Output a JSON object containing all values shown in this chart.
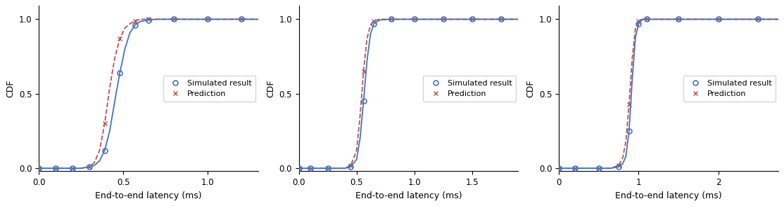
{
  "sim1": {
    "sim_x": [
      0.0,
      0.05,
      0.1,
      0.15,
      0.2,
      0.25,
      0.3,
      0.33,
      0.36,
      0.39,
      0.42,
      0.45,
      0.48,
      0.51,
      0.54,
      0.57,
      0.6,
      0.65,
      0.7,
      0.8,
      0.9,
      1.0,
      1.1,
      1.2,
      1.3
    ],
    "sim_y": [
      0.0,
      0.0,
      0.0,
      0.0,
      0.0,
      0.0,
      0.01,
      0.02,
      0.05,
      0.12,
      0.25,
      0.45,
      0.64,
      0.8,
      0.91,
      0.96,
      0.985,
      0.995,
      1.0,
      1.0,
      1.0,
      1.0,
      1.0,
      1.0,
      1.0
    ],
    "pred_x": [
      0.0,
      0.05,
      0.1,
      0.15,
      0.2,
      0.25,
      0.3,
      0.33,
      0.36,
      0.39,
      0.42,
      0.45,
      0.48,
      0.51,
      0.54,
      0.57,
      0.6,
      0.65,
      0.7,
      0.8,
      0.9,
      1.0,
      1.1,
      1.2,
      1.3
    ],
    "pred_y": [
      0.0,
      0.0,
      0.0,
      0.0,
      0.0,
      0.0,
      0.01,
      0.04,
      0.12,
      0.3,
      0.54,
      0.74,
      0.87,
      0.94,
      0.97,
      0.99,
      1.0,
      1.0,
      1.0,
      1.0,
      1.0,
      1.0,
      1.0,
      1.0,
      1.0
    ],
    "sim_markers_x": [
      0.0,
      0.1,
      0.2,
      0.3,
      0.39,
      0.48,
      0.57,
      0.65,
      0.8,
      1.0,
      1.2
    ],
    "sim_markers_y": [
      0.0,
      0.0,
      0.0,
      0.01,
      0.12,
      0.64,
      0.96,
      0.995,
      1.0,
      1.0,
      1.0
    ],
    "pred_markers_x": [
      0.0,
      0.1,
      0.2,
      0.3,
      0.39,
      0.48,
      0.57,
      0.65,
      0.8,
      1.0,
      1.2
    ],
    "pred_markers_y": [
      0.0,
      0.0,
      0.0,
      0.01,
      0.3,
      0.87,
      0.99,
      1.0,
      1.0,
      1.0,
      1.0
    ],
    "xlim": [
      0,
      1.3
    ],
    "xticks": [
      0,
      0.5,
      1.0
    ],
    "xlabel": "End-to-end latency (ms)"
  },
  "sim2": {
    "sim_x": [
      0.0,
      0.1,
      0.2,
      0.3,
      0.4,
      0.45,
      0.5,
      0.53,
      0.56,
      0.59,
      0.62,
      0.65,
      0.7,
      0.8,
      0.9,
      1.0,
      1.1,
      1.25,
      1.5,
      1.75,
      1.9
    ],
    "sim_y": [
      0.0,
      0.0,
      0.0,
      0.0,
      0.0,
      0.01,
      0.06,
      0.2,
      0.45,
      0.72,
      0.9,
      0.97,
      0.995,
      1.0,
      1.0,
      1.0,
      1.0,
      1.0,
      1.0,
      1.0,
      1.0
    ],
    "pred_x": [
      0.0,
      0.1,
      0.2,
      0.3,
      0.4,
      0.45,
      0.5,
      0.53,
      0.56,
      0.59,
      0.62,
      0.65,
      0.7,
      0.8,
      0.9,
      1.0,
      1.1,
      1.25,
      1.5,
      1.75,
      1.9
    ],
    "pred_y": [
      0.0,
      0.0,
      0.0,
      0.0,
      0.0,
      0.02,
      0.12,
      0.35,
      0.65,
      0.87,
      0.96,
      0.99,
      1.0,
      1.0,
      1.0,
      1.0,
      1.0,
      1.0,
      1.0,
      1.0,
      1.0
    ],
    "sim_markers_x": [
      0.0,
      0.1,
      0.25,
      0.45,
      0.56,
      0.65,
      0.8,
      1.0,
      1.25,
      1.5,
      1.75
    ],
    "sim_markers_y": [
      0.0,
      0.0,
      0.0,
      0.01,
      0.45,
      0.97,
      1.0,
      1.0,
      1.0,
      1.0,
      1.0
    ],
    "pred_markers_x": [
      0.0,
      0.1,
      0.25,
      0.45,
      0.56,
      0.65,
      0.8,
      1.0,
      1.25,
      1.5,
      1.75
    ],
    "pred_markers_y": [
      0.0,
      0.0,
      0.0,
      0.02,
      0.65,
      0.99,
      1.0,
      1.0,
      1.0,
      1.0,
      1.0
    ],
    "xlim": [
      0,
      1.9
    ],
    "xticks": [
      0,
      0.5,
      1.0,
      1.5
    ],
    "xlabel": "End-to-end latency (ms)"
  },
  "sim3": {
    "sim_x": [
      0.0,
      0.1,
      0.3,
      0.5,
      0.65,
      0.75,
      0.8,
      0.84,
      0.88,
      0.92,
      0.96,
      1.0,
      1.05,
      1.1,
      1.25,
      1.5,
      1.75,
      2.0,
      2.25,
      2.5,
      2.75
    ],
    "sim_y": [
      0.0,
      0.0,
      0.0,
      0.0,
      0.0,
      0.01,
      0.03,
      0.08,
      0.25,
      0.6,
      0.88,
      0.97,
      1.0,
      1.0,
      1.0,
      1.0,
      1.0,
      1.0,
      1.0,
      1.0,
      1.0
    ],
    "pred_x": [
      0.0,
      0.1,
      0.3,
      0.5,
      0.65,
      0.75,
      0.8,
      0.84,
      0.88,
      0.92,
      0.96,
      1.0,
      1.05,
      1.1,
      1.25,
      1.5,
      1.75,
      2.0,
      2.25,
      2.5,
      2.75
    ],
    "pred_y": [
      0.0,
      0.0,
      0.0,
      0.0,
      0.0,
      0.02,
      0.07,
      0.18,
      0.43,
      0.74,
      0.94,
      0.99,
      1.0,
      1.0,
      1.0,
      1.0,
      1.0,
      1.0,
      1.0,
      1.0,
      1.0
    ],
    "sim_markers_x": [
      0.0,
      0.2,
      0.5,
      0.75,
      0.88,
      1.0,
      1.1,
      1.5,
      2.0,
      2.5
    ],
    "sim_markers_y": [
      0.0,
      0.0,
      0.0,
      0.01,
      0.25,
      0.97,
      1.0,
      1.0,
      1.0,
      1.0
    ],
    "pred_markers_x": [
      0.0,
      0.2,
      0.5,
      0.75,
      0.88,
      1.0,
      1.1,
      1.5,
      2.0,
      2.5
    ],
    "pred_markers_y": [
      0.0,
      0.0,
      0.0,
      0.02,
      0.43,
      0.99,
      1.0,
      1.0,
      1.0,
      1.0
    ],
    "xlim": [
      0,
      2.75
    ],
    "xticks": [
      0,
      1,
      2
    ],
    "xlabel": "End-to-end latency (ms)"
  },
  "sim_color": "#4472C4",
  "pred_color": "#C0504D",
  "ylabel": "CDF",
  "ylim": [
    -0.02,
    1.09
  ],
  "yticks": [
    0,
    0.5,
    1
  ],
  "sim_label": "Simulated result",
  "pred_label": "Prediction",
  "sim_marker": "o",
  "pred_marker": "x",
  "marker_size": 5,
  "line_width": 1.3,
  "pred_linestyle": "--",
  "font_size_label": 9,
  "font_size_tick": 8.5,
  "font_size_legend": 8
}
